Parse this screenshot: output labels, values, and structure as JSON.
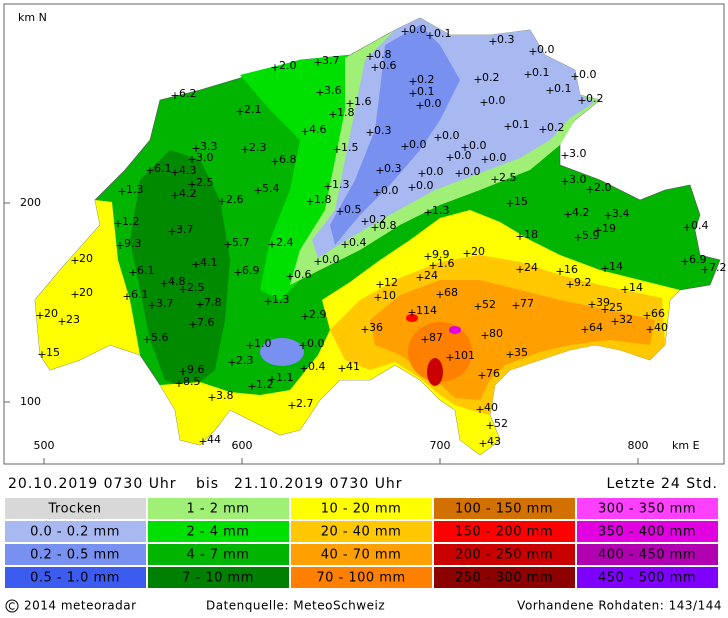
{
  "map": {
    "axis_label_y": "km N",
    "axis_label_x": "km E",
    "xticks": [
      500,
      600,
      700,
      800
    ],
    "yticks": [
      100,
      200
    ],
    "stations": [
      "0.0",
      "0.1",
      "0.3",
      "0.0",
      "0.8",
      "0.6",
      "2.0",
      "3.7",
      "0.1",
      "0.0",
      "0.2",
      "0.2",
      "0.1",
      "0.1",
      "0.2",
      "3.6",
      "1.6",
      "0.0",
      "0.0",
      "6.2",
      "2.1",
      "1.8",
      "0.1",
      "0.2",
      "4.6",
      "0.3",
      "0.0",
      "3.3",
      "2.3",
      "1.5",
      "0.0",
      "0.0",
      "3.0",
      "6.8",
      "0.0",
      "0.0",
      "6.1",
      "4.3",
      "3.0",
      "2.5",
      "0.3",
      "0.0",
      "0.0",
      "4.2",
      "5.4",
      "1.3",
      "0.0",
      "0.0",
      "2.5",
      "3.0",
      "1.3",
      "2.6",
      "1.8",
      "0.5",
      "2.0",
      "15",
      "0.2",
      "1.3",
      "4.2",
      "3.4",
      "1.2",
      "3.7",
      "0.8",
      "0.4",
      "5.7",
      "2.4",
      "18",
      "5.9",
      "19",
      "0.4",
      "9.3",
      "9.9",
      "20",
      "1.6",
      "0.6",
      "0.0",
      "20",
      "4.1",
      "6.9",
      "24",
      "16",
      "14",
      "6.9",
      "7.2",
      "24",
      "6.1",
      "4.8",
      "12",
      "9.2",
      "20",
      "2.5",
      "6.1",
      "68",
      "1.3",
      "3.7",
      "7.8",
      "10",
      "39",
      "25",
      "14",
      "52",
      "77",
      "20",
      "23",
      "2.9",
      "114",
      "32",
      "66",
      "7.6",
      "36",
      "64",
      "80",
      "40",
      "5.6",
      "1.0",
      "0.0",
      "87",
      "15",
      "35",
      "101",
      "2.3",
      "0.4",
      "41",
      "9.6",
      "1.1",
      "1.2",
      "76",
      "8.5",
      "3.8",
      "2.7",
      "40",
      "52",
      "44",
      "43"
    ]
  },
  "header": {
    "from": "20.10.2019 0730 Uhr",
    "bis": "bis",
    "to": "21.10.2019 0730 Uhr",
    "period": "Letzte 24 Std."
  },
  "legend": [
    [
      {
        "label": "Trocken",
        "color": "#d8d8d8"
      },
      {
        "label": "0.0 - 0.2 mm",
        "color": "#a8b8f0"
      },
      {
        "label": "0.2 - 0.5 mm",
        "color": "#7890f0"
      },
      {
        "label": "0.5 - 1.0 mm",
        "color": "#3c5cf0"
      }
    ],
    [
      {
        "label": "1 - 2 mm",
        "color": "#a0f078"
      },
      {
        "label": "2 - 4 mm",
        "color": "#00e000"
      },
      {
        "label": "4 - 7 mm",
        "color": "#00b400"
      },
      {
        "label": "7 - 10 mm",
        "color": "#008000"
      }
    ],
    [
      {
        "label": "10 - 20 mm",
        "color": "#ffff00"
      },
      {
        "label": "20 - 40 mm",
        "color": "#ffc800"
      },
      {
        "label": "40 - 70 mm",
        "color": "#ffa000"
      },
      {
        "label": "70 - 100 mm",
        "color": "#ff8000"
      }
    ],
    [
      {
        "label": "100 - 150 mm",
        "color": "#d27000"
      },
      {
        "label": "150 - 200 mm",
        "color": "#ff0000"
      },
      {
        "label": "200 - 250 mm",
        "color": "#c80000"
      },
      {
        "label": "250 - 300 mm",
        "color": "#8c0000"
      }
    ],
    [
      {
        "label": "300 - 350 mm",
        "color": "#ff40ff"
      },
      {
        "label": "350 - 400 mm",
        "color": "#e000e0"
      },
      {
        "label": "400 - 450 mm",
        "color": "#b000b0"
      },
      {
        "label": "450 - 500 mm",
        "color": "#8000ff"
      }
    ]
  ],
  "footer": {
    "copyright": "2014 meteoradar",
    "source": "Datenquelle: MeteoSchweiz",
    "raw": "Vorhandene Rohdaten: 143/144"
  }
}
